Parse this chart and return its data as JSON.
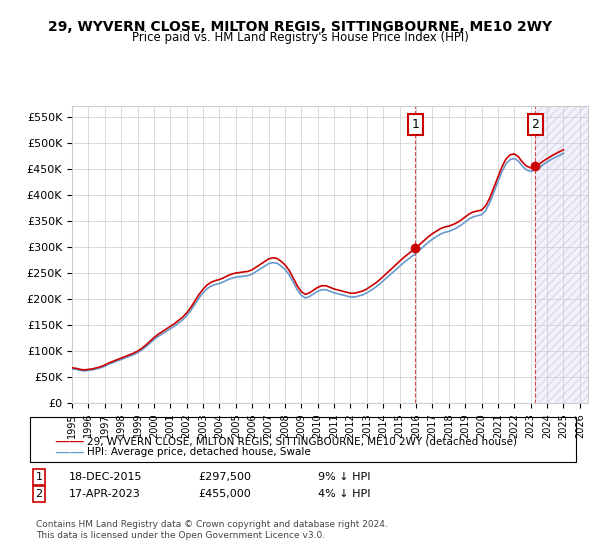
{
  "title": "29, WYVERN CLOSE, MILTON REGIS, SITTINGBOURNE, ME10 2WY",
  "subtitle": "Price paid vs. HM Land Registry's House Price Index (HPI)",
  "legend_line1": "29, WYVERN CLOSE, MILTON REGIS, SITTINGBOURNE, ME10 2WY (detached house)",
  "legend_line2": "HPI: Average price, detached house, Swale",
  "footer1": "Contains HM Land Registry data © Crown copyright and database right 2024.",
  "footer2": "This data is licensed under the Open Government Licence v3.0.",
  "sale1_label": "1",
  "sale1_date": "18-DEC-2015",
  "sale1_price": "£297,500",
  "sale1_hpi": "9% ↓ HPI",
  "sale1_year": 2015.96,
  "sale1_value": 297500,
  "sale2_label": "2",
  "sale2_date": "17-APR-2023",
  "sale2_price": "£455,000",
  "sale2_hpi": "4% ↓ HPI",
  "sale2_year": 2023.29,
  "sale2_value": 455000,
  "hpi_color": "#6699cc",
  "price_color": "#cc0000",
  "marker_box_color": "#cc0000",
  "background_hatch_color": "#ddddff",
  "ylim": [
    0,
    570000
  ],
  "xlim_start": 1995,
  "xlim_end": 2026.5,
  "yticks": [
    0,
    50000,
    100000,
    150000,
    200000,
    250000,
    300000,
    350000,
    400000,
    450000,
    500000,
    550000
  ],
  "ytick_labels": [
    "£0",
    "£50K",
    "£100K",
    "£150K",
    "£200K",
    "£250K",
    "£300K",
    "£350K",
    "£400K",
    "£450K",
    "£500K",
    "£550K"
  ],
  "xticks": [
    1995,
    1996,
    1997,
    1998,
    1999,
    2000,
    2001,
    2002,
    2003,
    2004,
    2005,
    2006,
    2007,
    2008,
    2009,
    2010,
    2011,
    2012,
    2013,
    2014,
    2015,
    2016,
    2017,
    2018,
    2019,
    2020,
    2021,
    2022,
    2023,
    2024,
    2025,
    2026
  ],
  "hpi_years": [
    1995.0,
    1995.25,
    1995.5,
    1995.75,
    1996.0,
    1996.25,
    1996.5,
    1996.75,
    1997.0,
    1997.25,
    1997.5,
    1997.75,
    1998.0,
    1998.25,
    1998.5,
    1998.75,
    1999.0,
    1999.25,
    1999.5,
    1999.75,
    2000.0,
    2000.25,
    2000.5,
    2000.75,
    2001.0,
    2001.25,
    2001.5,
    2001.75,
    2002.0,
    2002.25,
    2002.5,
    2002.75,
    2003.0,
    2003.25,
    2003.5,
    2003.75,
    2004.0,
    2004.25,
    2004.5,
    2004.75,
    2005.0,
    2005.25,
    2005.5,
    2005.75,
    2006.0,
    2006.25,
    2006.5,
    2006.75,
    2007.0,
    2007.25,
    2007.5,
    2007.75,
    2008.0,
    2008.25,
    2008.5,
    2008.75,
    2009.0,
    2009.25,
    2009.5,
    2009.75,
    2010.0,
    2010.25,
    2010.5,
    2010.75,
    2011.0,
    2011.25,
    2011.5,
    2011.75,
    2012.0,
    2012.25,
    2012.5,
    2012.75,
    2013.0,
    2013.25,
    2013.5,
    2013.75,
    2014.0,
    2014.25,
    2014.5,
    2014.75,
    2015.0,
    2015.25,
    2015.5,
    2015.75,
    2016.0,
    2016.25,
    2016.5,
    2016.75,
    2017.0,
    2017.25,
    2017.5,
    2017.75,
    2018.0,
    2018.25,
    2018.5,
    2018.75,
    2019.0,
    2019.25,
    2019.5,
    2019.75,
    2020.0,
    2020.25,
    2020.5,
    2020.75,
    2021.0,
    2021.25,
    2021.5,
    2021.75,
    2022.0,
    2022.25,
    2022.5,
    2022.75,
    2023.0,
    2023.25,
    2023.5,
    2023.75,
    2024.0,
    2024.25,
    2024.5,
    2024.75,
    2025.0
  ],
  "hpi_values": [
    66000,
    65000,
    63000,
    62000,
    63000,
    64000,
    66000,
    68000,
    71000,
    75000,
    78000,
    81000,
    84000,
    87000,
    90000,
    93000,
    97000,
    102000,
    108000,
    115000,
    122000,
    128000,
    133000,
    138000,
    143000,
    148000,
    154000,
    160000,
    168000,
    178000,
    190000,
    202000,
    212000,
    220000,
    225000,
    228000,
    230000,
    233000,
    237000,
    240000,
    242000,
    243000,
    244000,
    245000,
    248000,
    253000,
    258000,
    263000,
    268000,
    270000,
    269000,
    264000,
    257000,
    247000,
    233000,
    218000,
    207000,
    202000,
    205000,
    210000,
    215000,
    218000,
    218000,
    215000,
    212000,
    210000,
    208000,
    206000,
    204000,
    204000,
    206000,
    208000,
    212000,
    217000,
    222000,
    228000,
    235000,
    242000,
    249000,
    256000,
    263000,
    270000,
    276000,
    282000,
    288000,
    295000,
    302000,
    309000,
    315000,
    320000,
    325000,
    328000,
    330000,
    333000,
    337000,
    342000,
    348000,
    354000,
    358000,
    360000,
    362000,
    370000,
    385000,
    405000,
    425000,
    445000,
    460000,
    468000,
    470000,
    465000,
    455000,
    448000,
    445000,
    448000,
    452000,
    458000,
    463000,
    468000,
    472000,
    476000,
    480000
  ],
  "price_years": [
    1995.5,
    2015.96,
    2023.29
  ],
  "price_values": [
    68000,
    297500,
    455000
  ]
}
